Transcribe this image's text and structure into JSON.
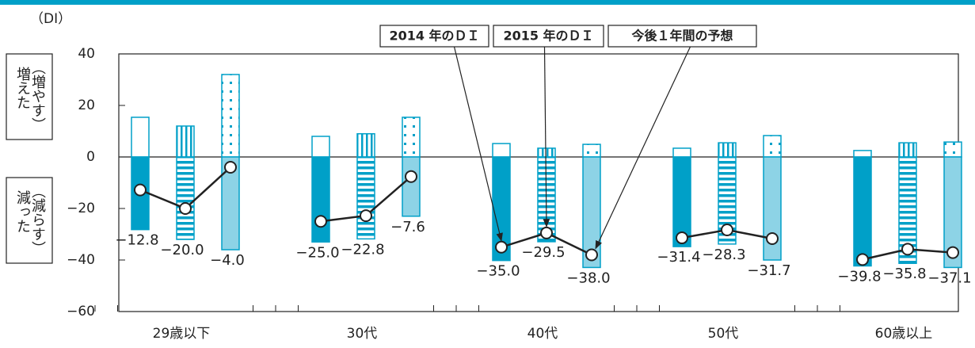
{
  "chart_data": {
    "type": "bar",
    "y_unit_label": "（DI）",
    "increase_label": {
      "main": "増えた",
      "note": "（増やす）"
    },
    "decrease_label": {
      "main": "減った",
      "note": "（減らす）"
    },
    "categories": [
      "29歳以下",
      "30代",
      "40代",
      "50代",
      "60歳以上"
    ],
    "ylim": [
      -60,
      40
    ],
    "yticks": [
      40,
      20,
      0,
      {
        "value": -20,
        "label": "−20"
      },
      {
        "value": -40,
        "label": "−40"
      },
      {
        "value": -60,
        "label": "−60"
      }
    ],
    "series": [
      {
        "name": "2014 年のＤＩ",
        "color": "#00a0c8",
        "pattern": "solid",
        "increase": [
          15.4,
          8.0,
          5.2,
          3.4,
          2.5
        ],
        "decrease": [
          -28.2,
          -33.0,
          -40.2,
          -34.8,
          -42.3
        ],
        "di": [
          -12.8,
          -25.0,
          -35.0,
          -31.4,
          -39.8
        ],
        "value_labels": [
          "−12.8",
          "−25.0",
          "−35.0",
          "−31.4",
          "−39.8"
        ]
      },
      {
        "name": "2015 年のＤＩ",
        "color": "#00a0c8",
        "pattern": "stripes",
        "increase": [
          12.0,
          9.0,
          3.4,
          5.5,
          5.5
        ],
        "decrease": [
          -32.0,
          -31.8,
          -32.9,
          -33.8,
          -41.3
        ],
        "di": [
          -20.0,
          -22.8,
          -29.5,
          -28.3,
          -35.8
        ],
        "value_labels": [
          "−20.0",
          "−22.8",
          "−29.5",
          "−28.3",
          "−35.8"
        ]
      },
      {
        "name": "今後１年間の予想",
        "color": "#8dd3e6",
        "pattern": "dots",
        "increase": [
          32.0,
          15.4,
          4.9,
          8.3,
          5.8
        ],
        "decrease": [
          -36.0,
          -23.0,
          -42.9,
          -40.0,
          -42.9
        ],
        "di": [
          -4.0,
          -7.6,
          -38.0,
          -31.7,
          -37.1
        ],
        "value_labels": [
          "−4.0",
          "−7.6",
          "−38.0",
          "−31.7",
          "−37.1"
        ]
      }
    ]
  }
}
